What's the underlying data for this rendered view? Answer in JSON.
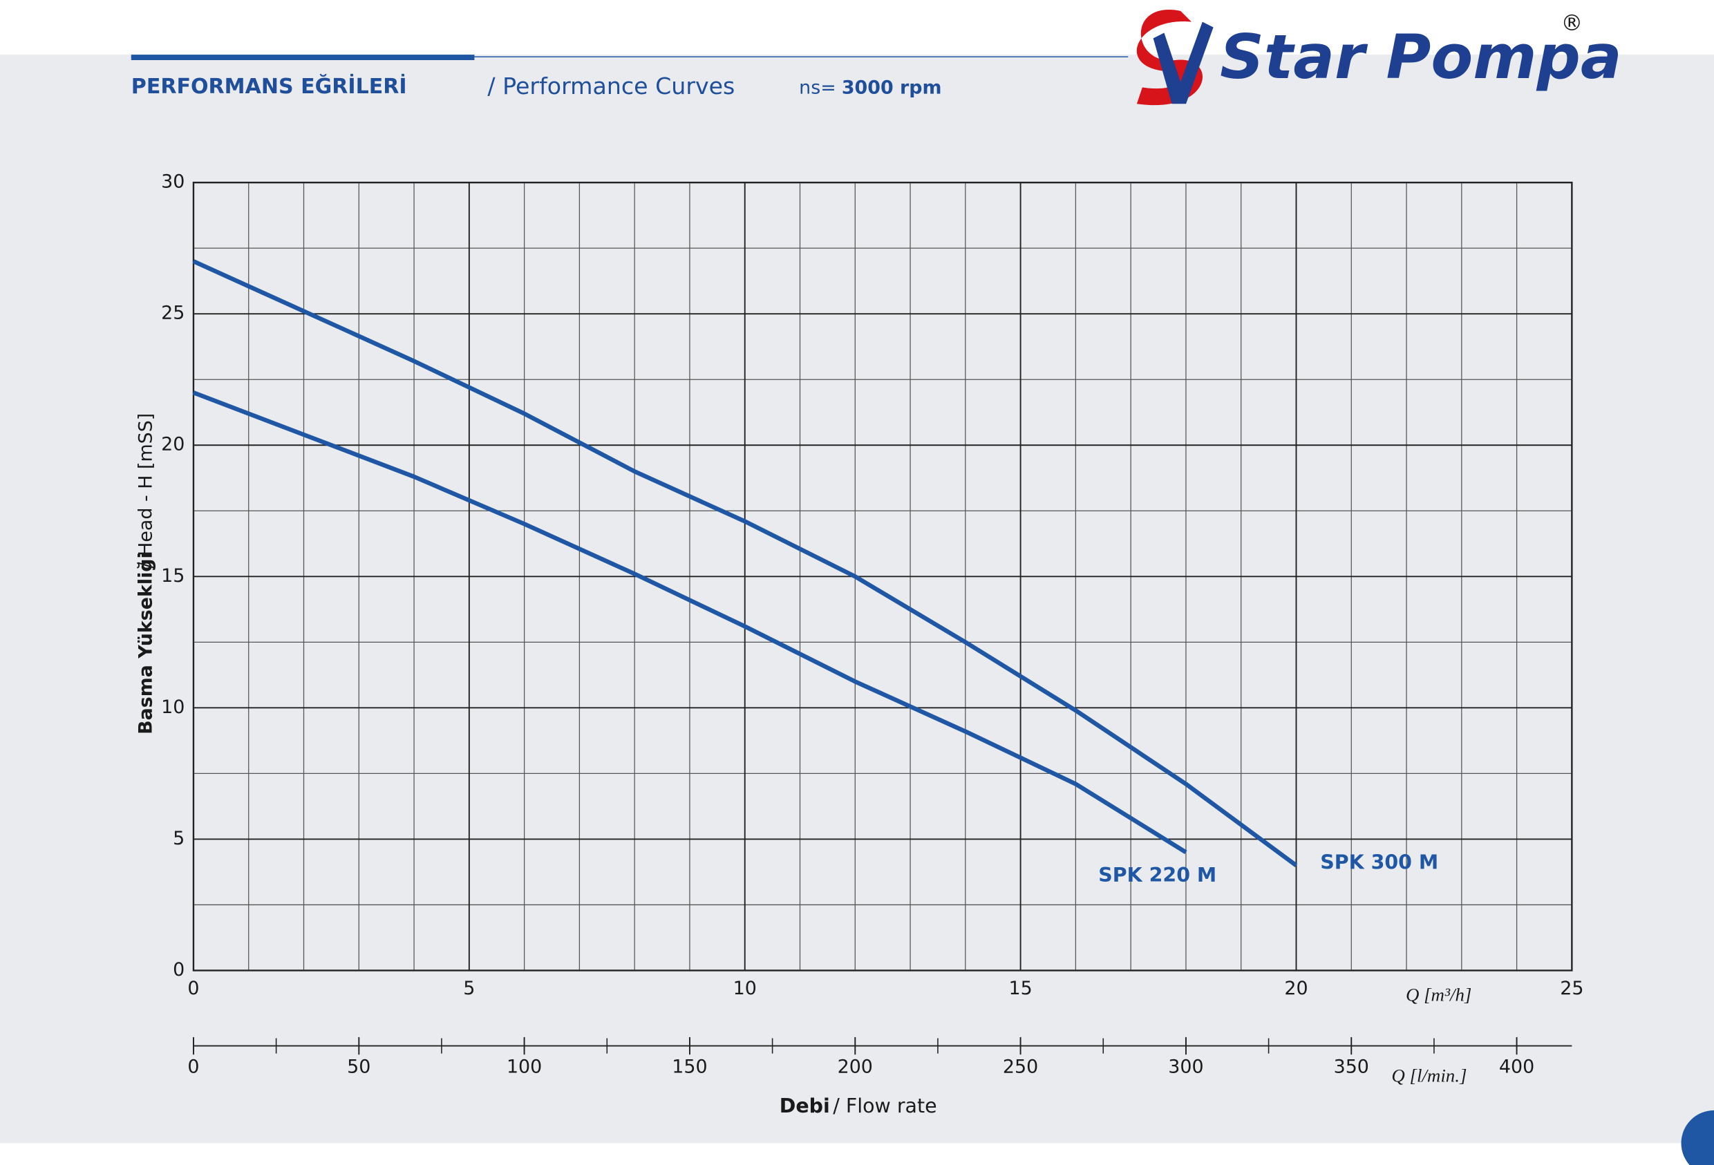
{
  "chart_data": {
    "type": "line",
    "title": "PERFORMANS EĞRİLERİ",
    "subtitle": "/ Performance Curves",
    "speed_label": "ns=",
    "speed": "3000 rpm",
    "brand": "Star Pompa",
    "brand_mark": "®",
    "ylabel_tr": "Basma Yüksekliği",
    "ylabel_en": "/ Head - H [mSS]",
    "xlabel": "Q [m³/h]",
    "x2label": "Q [l/min.]",
    "footer_tr": "Debi",
    "footer_en": "/ Flow rate",
    "x": [
      0,
      2,
      4,
      6,
      8,
      10,
      12,
      14,
      16,
      18,
      20
    ],
    "series": [
      {
        "name": "SPK 300 M",
        "color": "#1f57a4",
        "values": [
          27,
          25.1,
          23.2,
          21.2,
          19.0,
          17.1,
          15.0,
          12.5,
          9.9,
          7.1,
          4.0
        ]
      },
      {
        "name": "SPK 220 M",
        "color": "#1f57a4",
        "values": [
          22,
          20.4,
          18.8,
          17.0,
          15.1,
          13.1,
          11.0,
          9.1,
          7.1,
          4.5,
          null
        ]
      }
    ],
    "xlim": [
      0,
      25
    ],
    "xticks": [
      0,
      5,
      10,
      15,
      20,
      25
    ],
    "xminor_step": 1,
    "ylim": [
      0,
      30
    ],
    "yticks": [
      0,
      5,
      10,
      15,
      20,
      25,
      30
    ],
    "yminor_step": 2.5,
    "x2lim": [
      0,
      416.67
    ],
    "x2ticks": [
      0,
      50,
      100,
      150,
      200,
      250,
      300,
      350,
      400
    ],
    "x2minor_step": 25,
    "grid": true
  }
}
